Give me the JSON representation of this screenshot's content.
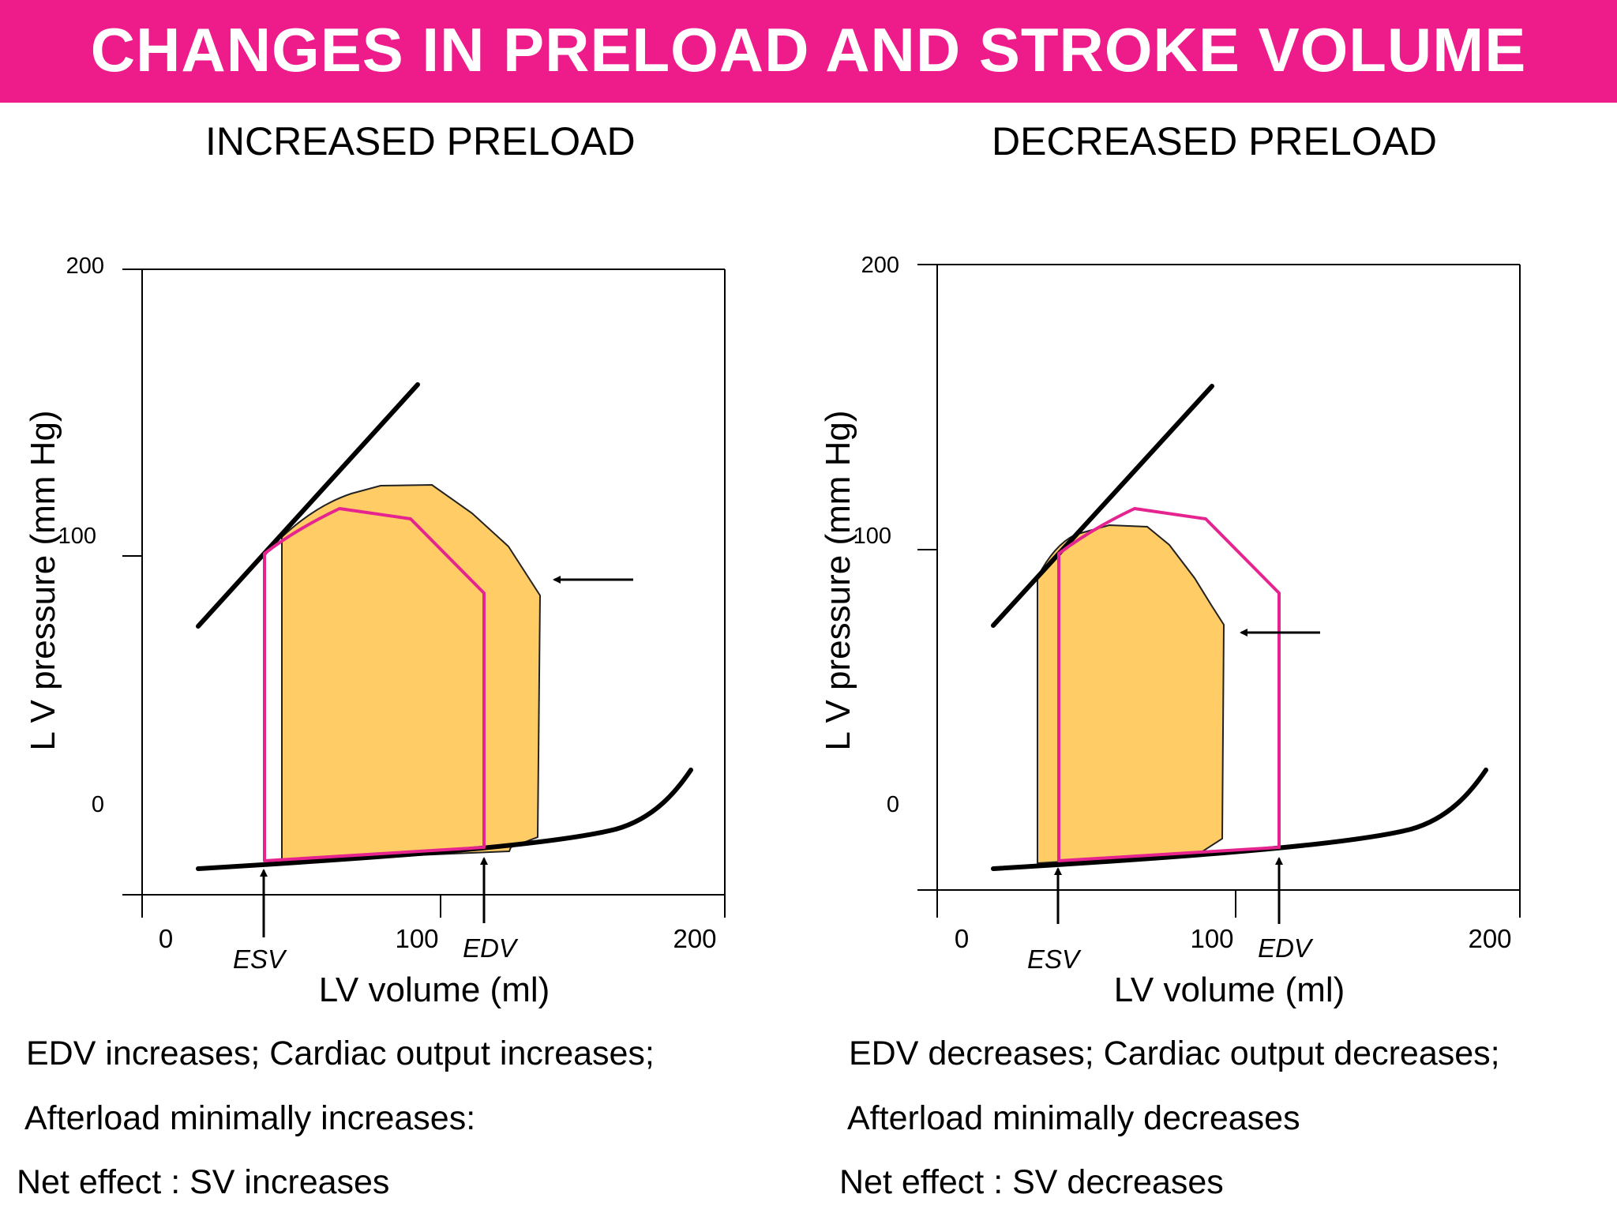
{
  "header": {
    "title": "CHANGES IN PRELOAD AND STROKE VOLUME",
    "color": "#ee1c8b"
  },
  "colors": {
    "shaded_loop": "#ffcc66",
    "baseline_loop": "#e6248f"
  },
  "panels": [
    {
      "subtitle": "INCREASED PRELOAD",
      "y_axis": {
        "title": "L V  pressure (mm Hg)",
        "ticks": [
          "200",
          "100",
          "0"
        ]
      },
      "x_axis": {
        "title": "LV volume (ml)",
        "ticks": [
          "0",
          "100",
          "200"
        ]
      },
      "labels": {
        "esv": "ESV",
        "edv": "EDV"
      },
      "captions": [
        "EDV increases; Cardiac output increases;",
        "Afterload minimally increases:",
        "Net effect :  SV increases"
      ]
    },
    {
      "subtitle": "DECREASED PRELOAD",
      "y_axis": {
        "title": "L V  pressure (mm Hg)",
        "ticks": [
          "200",
          "100",
          "0"
        ]
      },
      "x_axis": {
        "title": "LV volume (ml)",
        "ticks": [
          "0",
          "100",
          "200"
        ]
      },
      "labels": {
        "esv": "ESV",
        "edv": "EDV"
      },
      "captions": [
        "EDV decreases; Cardiac output decreases;",
        "Afterload minimally decreases",
        "Net effect :  SV decreases"
      ]
    }
  ]
}
